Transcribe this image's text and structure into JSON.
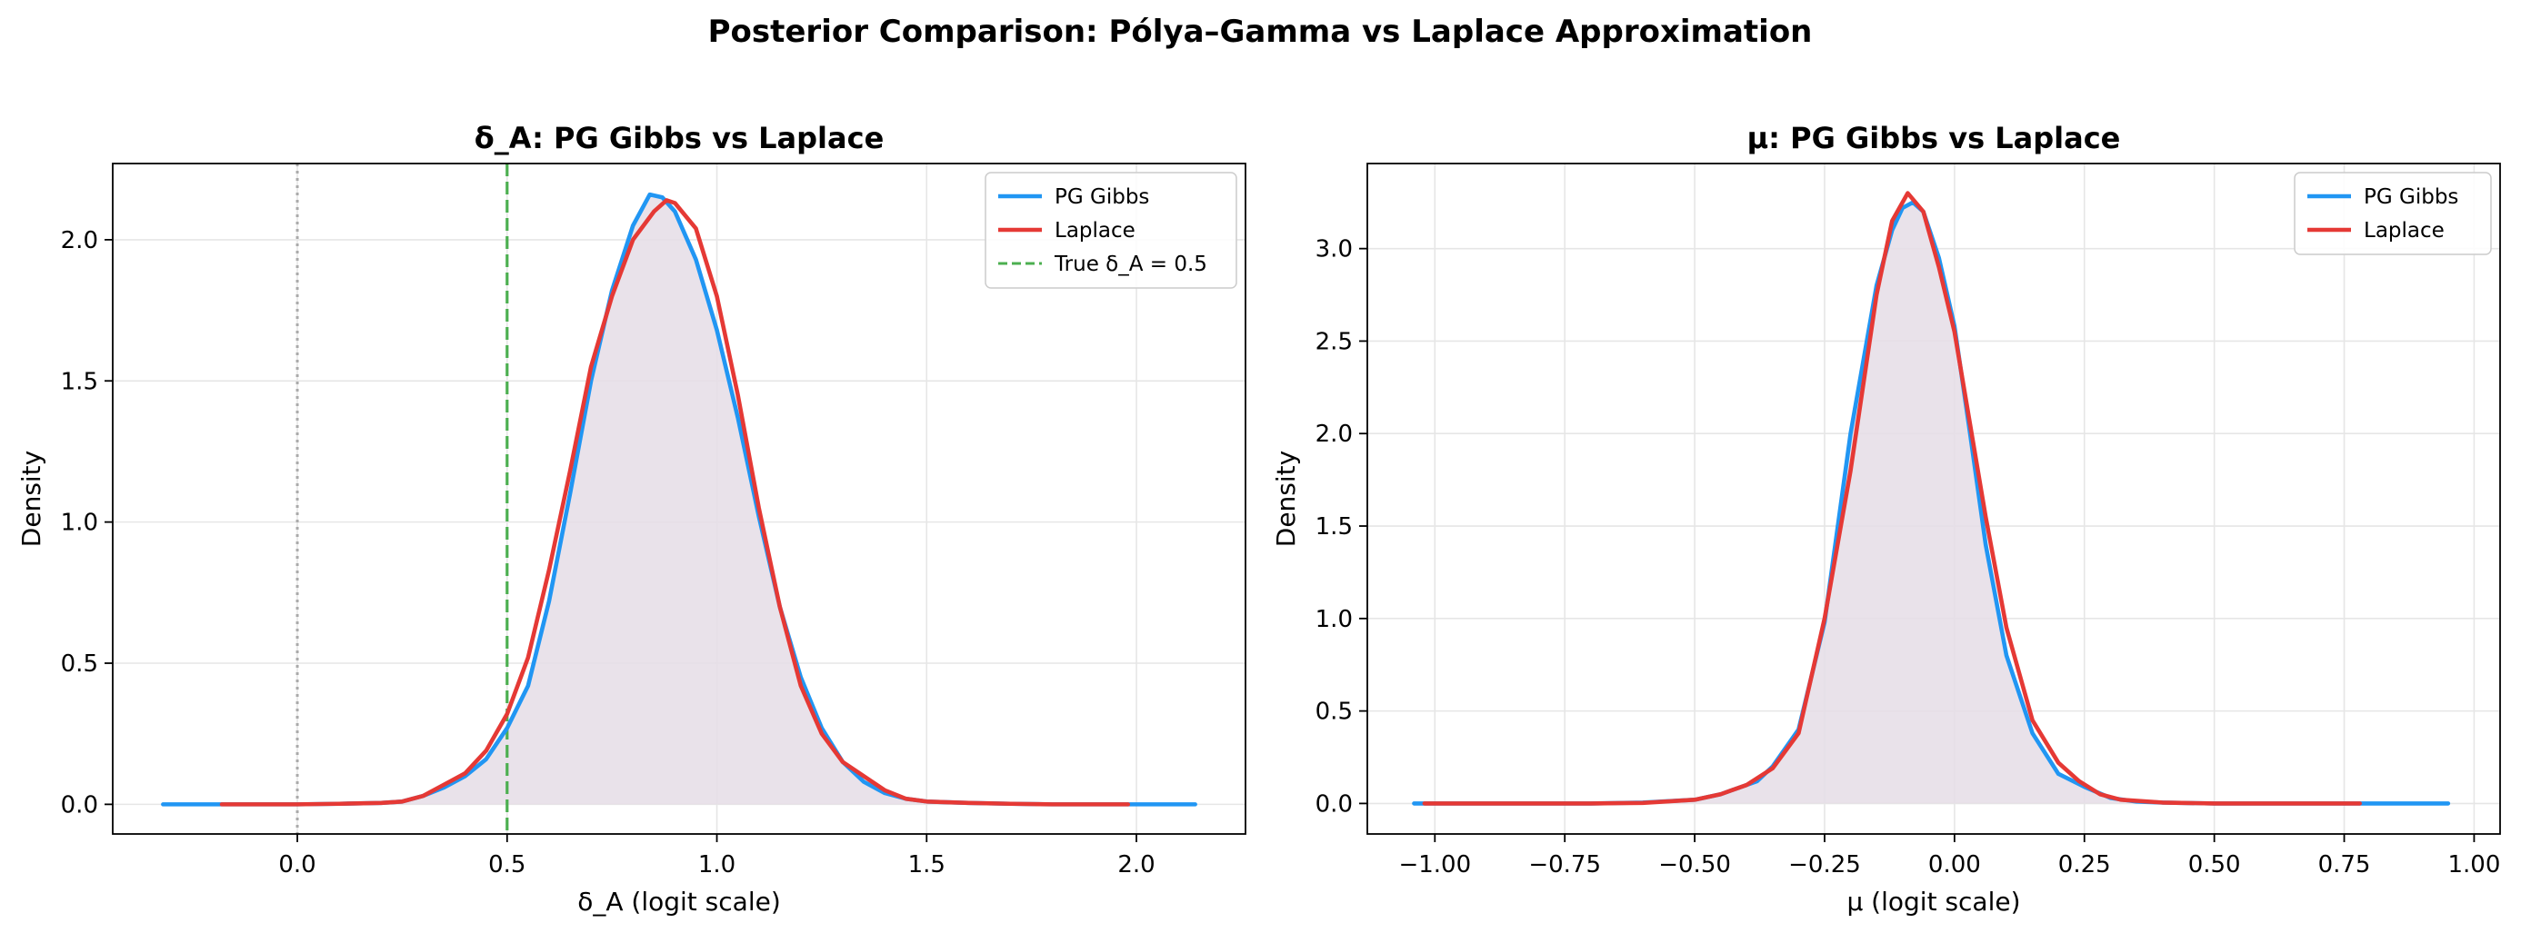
{
  "figure": {
    "suptitle": "Posterior Comparison: Pólya–Gamma vs Laplace Approximation"
  },
  "colors": {
    "pg": "#2196F3",
    "laplace": "#E53935",
    "true_line": "#4CAF50",
    "zero_line": "#aaaaaa",
    "fill": "#e5dde6"
  },
  "chart_data": [
    {
      "type": "line",
      "title": "δ_A: PG Gibbs vs Laplace",
      "xlabel": "δ_A (logit scale)",
      "ylabel": "Density",
      "xlim": [
        -0.44,
        2.26
      ],
      "ylim": [
        -0.105,
        2.27
      ],
      "xticks": [
        0.0,
        0.5,
        1.0,
        1.5,
        2.0
      ],
      "xtick_labels": [
        "0.0",
        "0.5",
        "1.0",
        "1.5",
        "2.0"
      ],
      "yticks": [
        0.0,
        0.5,
        1.0,
        1.5,
        2.0
      ],
      "ytick_labels": [
        "0.0",
        "0.5",
        "1.0",
        "1.5",
        "2.0"
      ],
      "grid": true,
      "legend_position": "top-right",
      "series": [
        {
          "name": "PG Gibbs",
          "style": "solid",
          "x": [
            -0.32,
            -0.2,
            -0.1,
            0.0,
            0.1,
            0.2,
            0.25,
            0.3,
            0.35,
            0.4,
            0.45,
            0.5,
            0.55,
            0.6,
            0.65,
            0.7,
            0.75,
            0.8,
            0.84,
            0.87,
            0.9,
            0.95,
            1.0,
            1.05,
            1.1,
            1.15,
            1.2,
            1.25,
            1.3,
            1.35,
            1.4,
            1.45,
            1.5,
            1.6,
            1.7,
            1.8,
            1.9,
            2.0,
            2.14
          ],
          "y": [
            0.0,
            0.0,
            0.0,
            0.0,
            0.002,
            0.005,
            0.01,
            0.03,
            0.06,
            0.1,
            0.16,
            0.27,
            0.42,
            0.72,
            1.1,
            1.5,
            1.82,
            2.05,
            2.16,
            2.15,
            2.1,
            1.93,
            1.68,
            1.37,
            1.02,
            0.7,
            0.45,
            0.27,
            0.15,
            0.08,
            0.04,
            0.02,
            0.01,
            0.005,
            0.002,
            0.0,
            0.0,
            0.0,
            0.0
          ]
        },
        {
          "name": "Laplace",
          "style": "solid",
          "x": [
            -0.18,
            -0.1,
            0.0,
            0.1,
            0.2,
            0.25,
            0.3,
            0.35,
            0.4,
            0.45,
            0.5,
            0.55,
            0.6,
            0.65,
            0.7,
            0.75,
            0.8,
            0.85,
            0.88,
            0.9,
            0.95,
            1.0,
            1.05,
            1.1,
            1.15,
            1.2,
            1.25,
            1.3,
            1.35,
            1.4,
            1.45,
            1.5,
            1.6,
            1.7,
            1.8,
            1.9,
            1.98
          ],
          "y": [
            0.0,
            0.0,
            0.0,
            0.002,
            0.005,
            0.01,
            0.03,
            0.07,
            0.11,
            0.19,
            0.32,
            0.52,
            0.83,
            1.18,
            1.55,
            1.8,
            2.0,
            2.1,
            2.14,
            2.13,
            2.04,
            1.8,
            1.45,
            1.05,
            0.7,
            0.42,
            0.25,
            0.15,
            0.1,
            0.05,
            0.02,
            0.01,
            0.005,
            0.002,
            0.0,
            0.0,
            0.0
          ]
        }
      ],
      "vlines": [
        {
          "x": 0.0,
          "style": "dotted",
          "label": ""
        },
        {
          "x": 0.5,
          "style": "dashed",
          "label": "True δ_A = 0.5"
        }
      ]
    },
    {
      "type": "line",
      "title": "μ: PG Gibbs vs Laplace",
      "xlabel": "μ (logit scale)",
      "ylabel": "Density",
      "xlim": [
        -1.13,
        1.05
      ],
      "ylim": [
        -0.165,
        3.46
      ],
      "xticks": [
        -1.0,
        -0.75,
        -0.5,
        -0.25,
        0.0,
        0.25,
        0.5,
        0.75,
        1.0
      ],
      "xtick_labels": [
        "−1.00",
        "−0.75",
        "−0.50",
        "−0.25",
        "0.00",
        "0.25",
        "0.50",
        "0.75",
        "1.00"
      ],
      "yticks": [
        0.0,
        0.5,
        1.0,
        1.5,
        2.0,
        2.5,
        3.0
      ],
      "ytick_labels": [
        "0.0",
        "0.5",
        "1.0",
        "1.5",
        "2.0",
        "2.5",
        "3.0"
      ],
      "grid": true,
      "legend_position": "top-right",
      "series": [
        {
          "name": "PG Gibbs",
          "style": "solid",
          "x": [
            -1.04,
            -0.9,
            -0.7,
            -0.6,
            -0.5,
            -0.45,
            -0.42,
            -0.38,
            -0.35,
            -0.3,
            -0.25,
            -0.2,
            -0.15,
            -0.12,
            -0.1,
            -0.08,
            -0.06,
            -0.03,
            0.0,
            0.03,
            0.06,
            0.1,
            0.15,
            0.2,
            0.25,
            0.3,
            0.35,
            0.4,
            0.5,
            0.6,
            0.7,
            0.8,
            0.95
          ],
          "y": [
            0.0,
            0.0,
            0.0,
            0.005,
            0.02,
            0.05,
            0.08,
            0.12,
            0.2,
            0.4,
            0.98,
            2.0,
            2.8,
            3.1,
            3.22,
            3.25,
            3.2,
            2.95,
            2.58,
            2.0,
            1.4,
            0.8,
            0.38,
            0.16,
            0.09,
            0.03,
            0.01,
            0.005,
            0.0,
            0.0,
            0.0,
            0.0,
            0.0
          ]
        },
        {
          "name": "Laplace",
          "style": "solid",
          "x": [
            -1.02,
            -0.9,
            -0.7,
            -0.6,
            -0.5,
            -0.45,
            -0.4,
            -0.35,
            -0.3,
            -0.25,
            -0.2,
            -0.15,
            -0.12,
            -0.09,
            -0.06,
            -0.03,
            0.0,
            0.03,
            0.06,
            0.1,
            0.15,
            0.2,
            0.24,
            0.28,
            0.32,
            0.4,
            0.5,
            0.6,
            0.7,
            0.78
          ],
          "y": [
            0.0,
            0.0,
            0.0,
            0.003,
            0.02,
            0.05,
            0.1,
            0.19,
            0.38,
            1.0,
            1.8,
            2.75,
            3.15,
            3.3,
            3.2,
            2.9,
            2.55,
            2.05,
            1.55,
            0.95,
            0.45,
            0.22,
            0.12,
            0.05,
            0.02,
            0.005,
            0.0,
            0.0,
            0.0,
            0.0
          ]
        }
      ],
      "vlines": []
    }
  ]
}
